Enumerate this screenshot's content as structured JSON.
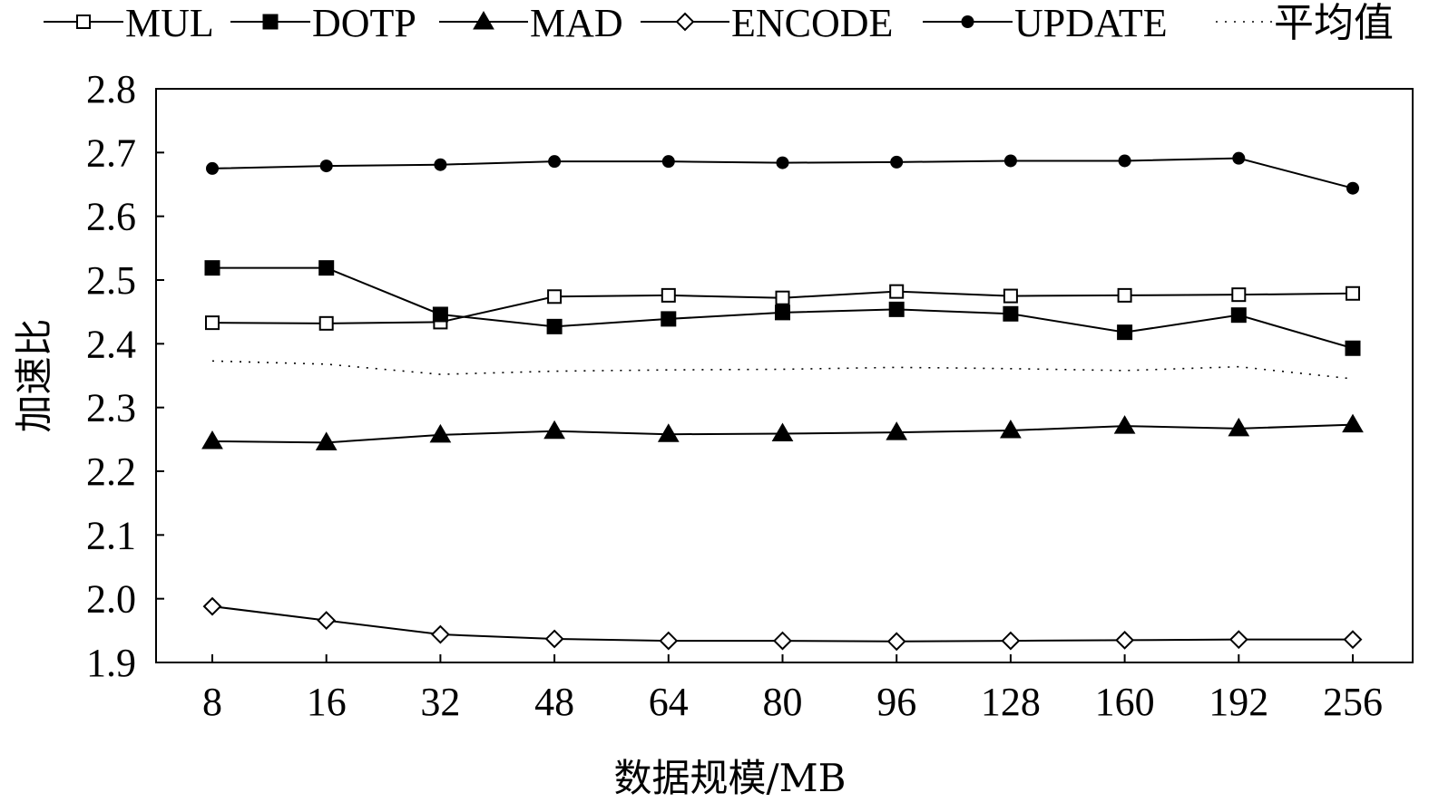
{
  "chart_data": {
    "type": "line",
    "title": "",
    "xlabel": "数据规模/MB",
    "ylabel": "加速比",
    "categories": [
      "8",
      "16",
      "32",
      "48",
      "64",
      "80",
      "96",
      "128",
      "160",
      "192",
      "256"
    ],
    "ylim": [
      1.9,
      2.8
    ],
    "yticks": [
      1.9,
      2.0,
      2.1,
      2.2,
      2.3,
      2.4,
      2.5,
      2.6,
      2.7,
      2.8
    ],
    "ytick_labels": [
      "1.9",
      "2.0",
      "2.1",
      "2.2",
      "2.3",
      "2.4",
      "2.5",
      "2.6",
      "2.7",
      "2.8"
    ],
    "grid": false,
    "legend_position": "top",
    "series": [
      {
        "name": "MUL",
        "marker": "open-square",
        "line_style": "solid",
        "values": [
          2.433,
          2.432,
          2.434,
          2.474,
          2.476,
          2.472,
          2.482,
          2.475,
          2.476,
          2.477,
          2.479
        ]
      },
      {
        "name": "DOTP",
        "marker": "filled-square",
        "line_style": "solid",
        "values": [
          2.519,
          2.519,
          2.446,
          2.427,
          2.439,
          2.449,
          2.454,
          2.447,
          2.418,
          2.445,
          2.393
        ]
      },
      {
        "name": "MAD",
        "marker": "filled-triangle",
        "line_style": "solid",
        "values": [
          2.247,
          2.245,
          2.257,
          2.263,
          2.258,
          2.259,
          2.261,
          2.264,
          2.271,
          2.267,
          2.273
        ]
      },
      {
        "name": "ENCODE",
        "marker": "open-diamond",
        "line_style": "solid",
        "values": [
          1.988,
          1.966,
          1.944,
          1.937,
          1.934,
          1.934,
          1.933,
          1.934,
          1.935,
          1.936,
          1.936
        ]
      },
      {
        "name": "UPDATE",
        "marker": "filled-circle",
        "line_style": "solid",
        "values": [
          2.675,
          2.679,
          2.681,
          2.686,
          2.686,
          2.684,
          2.685,
          2.687,
          2.687,
          2.691,
          2.644
        ]
      },
      {
        "name": "平均值",
        "marker": "none",
        "line_style": "dotted",
        "values": [
          2.373,
          2.368,
          2.352,
          2.357,
          2.359,
          2.36,
          2.363,
          2.361,
          2.358,
          2.364,
          2.345
        ]
      }
    ]
  }
}
